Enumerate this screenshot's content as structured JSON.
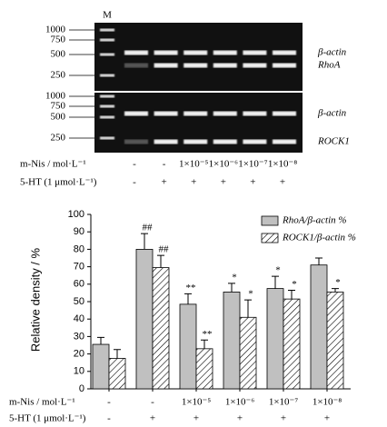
{
  "gel": {
    "lane_label": "M",
    "panels": [
      {
        "markers": [
          "1000",
          "750",
          "500",
          "250"
        ],
        "bands": [
          "β-actin",
          "RhoA"
        ]
      },
      {
        "markers": [
          "1000",
          "750",
          "500",
          "250"
        ],
        "bands": [
          "β-actin",
          "ROCK1"
        ]
      }
    ],
    "rows": [
      {
        "label": "m-Nis / mol·L⁻¹",
        "values": [
          "-",
          "-",
          "1×10⁻⁵",
          "1×10⁻⁶",
          "1×10⁻⁷",
          "1×10⁻⁸"
        ]
      },
      {
        "label": "5-HT (1 μmol·L⁻¹)",
        "values": [
          "-",
          "+",
          "+",
          "+",
          "+",
          "+"
        ]
      }
    ]
  },
  "chart_data": {
    "type": "bar",
    "y_label": "Relative density / %",
    "categories": [
      null,
      null,
      null,
      null,
      null,
      null
    ],
    "x_rows": [
      {
        "label": "m-Nis / mol·L⁻¹",
        "values": [
          "-",
          "-",
          "1×10⁻⁵",
          "1×10⁻⁶",
          "1×10⁻⁷",
          "1×10⁻⁸"
        ]
      },
      {
        "label": "5-HT (1 μmol·L⁻¹)",
        "values": [
          "-",
          "+",
          "+",
          "+",
          "+",
          "+"
        ]
      }
    ],
    "series": [
      {
        "name": "RhoA/β-actin %",
        "color": "#c0c0c0",
        "hatch": false,
        "values": [
          25.5,
          80,
          48.5,
          55.5,
          57.5,
          71
        ],
        "errors": [
          4,
          9,
          6,
          5,
          7,
          4
        ],
        "labels": [
          null,
          "##",
          "**",
          "*",
          "*",
          null
        ]
      },
      {
        "name": "ROCK1/β-actin %",
        "color": "#ffffff",
        "hatch": true,
        "values": [
          17.5,
          69.5,
          23,
          41,
          51.5,
          55.5
        ],
        "errors": [
          5,
          7,
          5,
          10,
          5,
          2
        ],
        "labels": [
          null,
          "##",
          "**",
          "*",
          "*",
          "*"
        ]
      }
    ],
    "ylim": [
      0,
      100
    ],
    "yticks": [
      0,
      10,
      20,
      30,
      40,
      50,
      60,
      70,
      80,
      90,
      100
    ],
    "legend": "upper right"
  }
}
